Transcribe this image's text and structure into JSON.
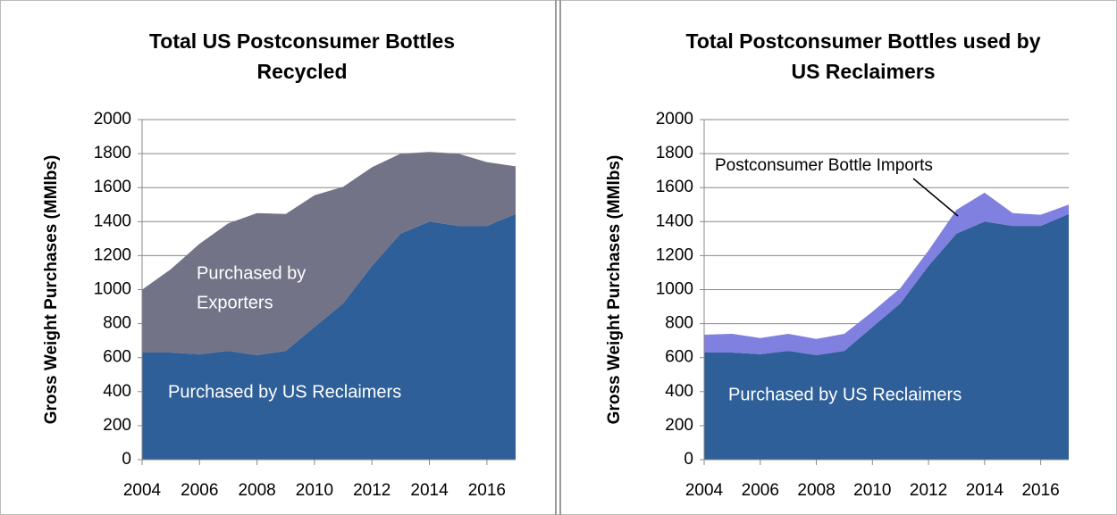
{
  "chart_data": [
    {
      "type": "stacked_area",
      "title_lines": [
        "Total US Postconsumer Bottles",
        "Recycled"
      ],
      "y_label": "Gross Weight Purchases (MMlbs)",
      "x": [
        2004,
        2005,
        2006,
        2007,
        2008,
        2009,
        2010,
        2011,
        2012,
        2013,
        2014,
        2015,
        2016,
        2017
      ],
      "xlim": [
        2004,
        2017
      ],
      "xticks": [
        2004,
        2006,
        2008,
        2010,
        2012,
        2014,
        2016
      ],
      "ylim": [
        0,
        2000
      ],
      "yticks": [
        0,
        200,
        400,
        600,
        800,
        1000,
        1200,
        1400,
        1600,
        1800,
        2000
      ],
      "grid": true,
      "series": [
        {
          "name": "Purchased by US Reclaimers",
          "color": "#2e5f98",
          "values": [
            630,
            630,
            620,
            640,
            615,
            640,
            780,
            920,
            1140,
            1330,
            1400,
            1375,
            1375,
            1445
          ]
        },
        {
          "name_lines": [
            "Purchased by",
            "Exporters"
          ],
          "color": "#737388",
          "values": [
            370,
            490,
            650,
            750,
            835,
            805,
            775,
            685,
            580,
            470,
            410,
            425,
            375,
            280
          ]
        }
      ]
    },
    {
      "type": "stacked_area",
      "title_lines": [
        "Total Postconsumer Bottles used by",
        "US Reclaimers"
      ],
      "y_label": "Gross Weight Purchases (MMlbs)",
      "x": [
        2004,
        2005,
        2006,
        2007,
        2008,
        2009,
        2010,
        2011,
        2012,
        2013,
        2014,
        2015,
        2016,
        2017
      ],
      "xlim": [
        2004,
        2017
      ],
      "xticks": [
        2004,
        2006,
        2008,
        2010,
        2012,
        2014,
        2016
      ],
      "ylim": [
        0,
        2000
      ],
      "yticks": [
        0,
        200,
        400,
        600,
        800,
        1000,
        1200,
        1400,
        1600,
        1800,
        2000
      ],
      "grid": true,
      "series": [
        {
          "name": "Purchased by US Reclaimers",
          "color": "#2e5f98",
          "values": [
            630,
            630,
            620,
            640,
            615,
            640,
            780,
            920,
            1140,
            1330,
            1400,
            1375,
            1375,
            1445
          ]
        },
        {
          "name": "Postconsumer Bottle Imports",
          "color": "#7f80e0",
          "values": [
            105,
            110,
            95,
            100,
            95,
            100,
            90,
            90,
            90,
            140,
            170,
            75,
            65,
            55
          ]
        }
      ]
    }
  ]
}
